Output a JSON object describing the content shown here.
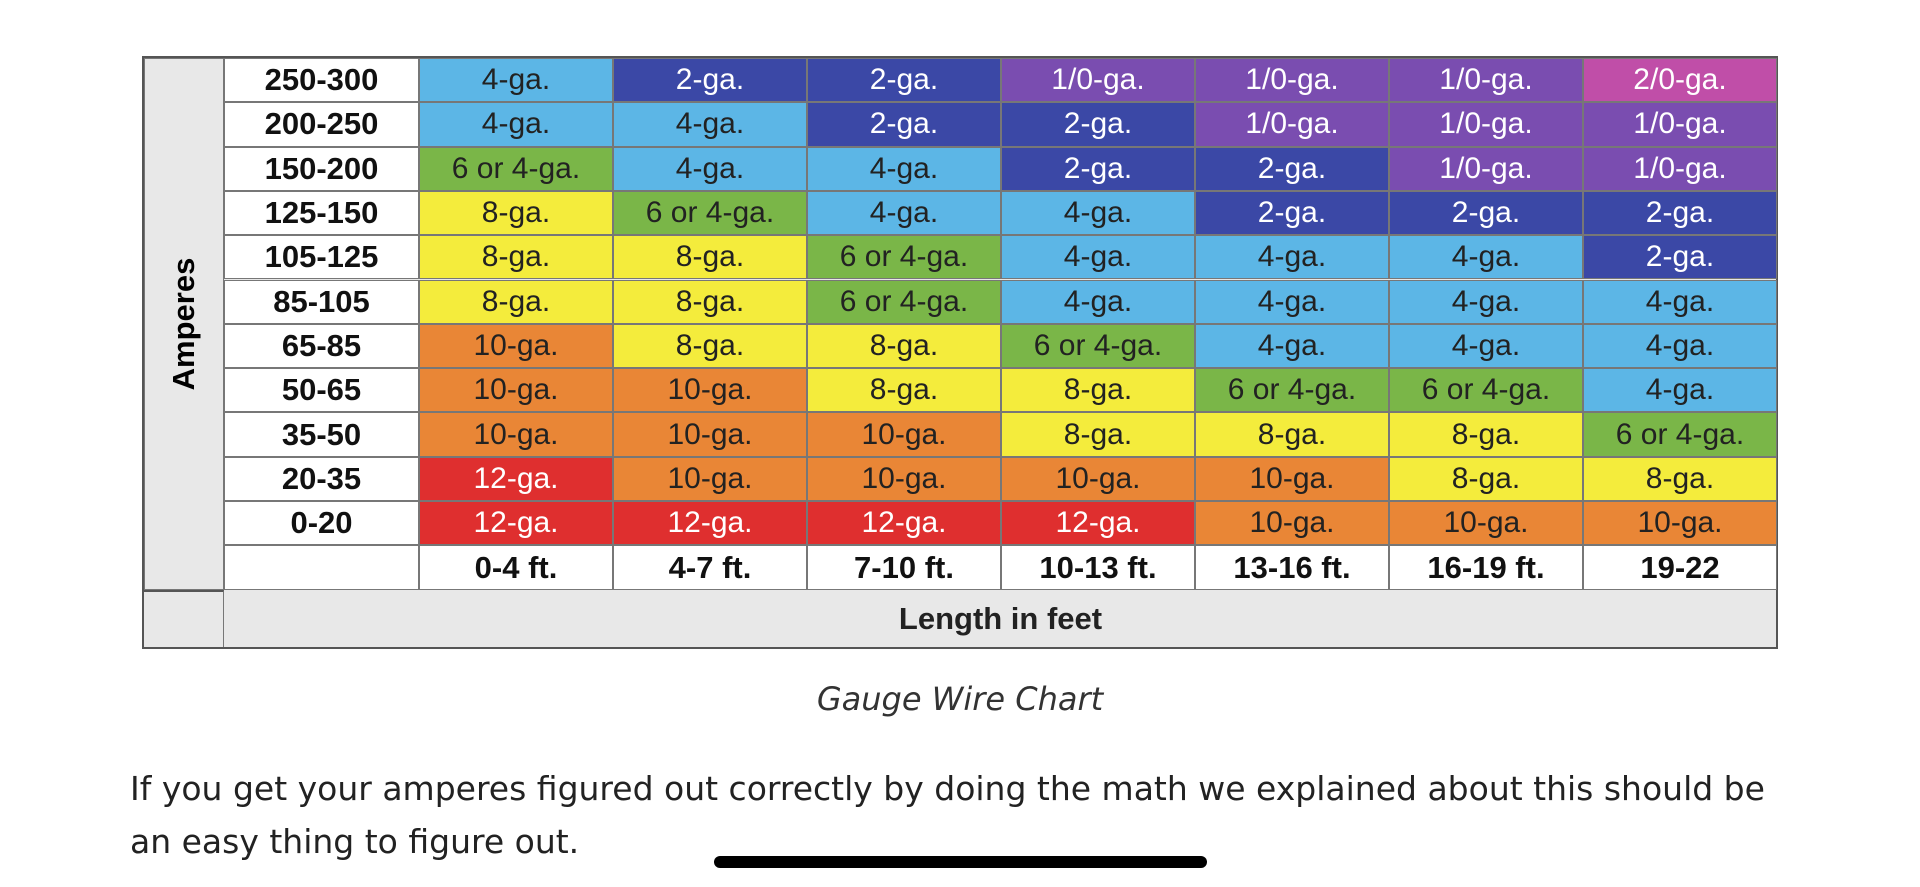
{
  "table": {
    "row_axis_label": "Amperes",
    "column_axis_label": "Length in feet",
    "columns": [
      "0-4 ft.",
      "4-7 ft.",
      "7-10 ft.",
      "10-13 ft.",
      "13-16 ft.",
      "16-19 ft.",
      "19-22"
    ],
    "rows": [
      {
        "label": "250-300",
        "cells": [
          {
            "text": "4-ga.",
            "color": "#5cb6e6"
          },
          {
            "text": "2-ga.",
            "color": "#3b48a6"
          },
          {
            "text": "2-ga.",
            "color": "#3b48a6"
          },
          {
            "text": "1/0-ga.",
            "color": "#7a4db0"
          },
          {
            "text": "1/0-ga.",
            "color": "#7a4db0"
          },
          {
            "text": "1/0-ga.",
            "color": "#7a4db0"
          },
          {
            "text": "2/0-ga.",
            "color": "#c04ea8"
          }
        ]
      },
      {
        "label": "200-250",
        "cells": [
          {
            "text": "4-ga.",
            "color": "#5cb6e6"
          },
          {
            "text": "4-ga.",
            "color": "#5cb6e6"
          },
          {
            "text": "2-ga.",
            "color": "#3b48a6"
          },
          {
            "text": "2-ga.",
            "color": "#3b48a6"
          },
          {
            "text": "1/0-ga.",
            "color": "#7a4db0"
          },
          {
            "text": "1/0-ga.",
            "color": "#7a4db0"
          },
          {
            "text": "1/0-ga.",
            "color": "#7a4db0"
          }
        ]
      },
      {
        "label": "150-200",
        "cells": [
          {
            "text": "6 or 4-ga.",
            "color": "#7ab648"
          },
          {
            "text": "4-ga.",
            "color": "#5cb6e6"
          },
          {
            "text": "4-ga.",
            "color": "#5cb6e6"
          },
          {
            "text": "2-ga.",
            "color": "#3b48a6"
          },
          {
            "text": "2-ga.",
            "color": "#3b48a6"
          },
          {
            "text": "1/0-ga.",
            "color": "#7a4db0"
          },
          {
            "text": "1/0-ga.",
            "color": "#7a4db0"
          }
        ]
      },
      {
        "label": "125-150",
        "cells": [
          {
            "text": "8-ga.",
            "color": "#f4ec3c"
          },
          {
            "text": "6 or 4-ga.",
            "color": "#7ab648"
          },
          {
            "text": "4-ga.",
            "color": "#5cb6e6"
          },
          {
            "text": "4-ga.",
            "color": "#5cb6e6"
          },
          {
            "text": "2-ga.",
            "color": "#3b48a6"
          },
          {
            "text": "2-ga.",
            "color": "#3b48a6"
          },
          {
            "text": "2-ga.",
            "color": "#3b48a6"
          }
        ]
      },
      {
        "label": "105-125",
        "cells": [
          {
            "text": "8-ga.",
            "color": "#f4ec3c"
          },
          {
            "text": "8-ga.",
            "color": "#f4ec3c"
          },
          {
            "text": "6 or 4-ga.",
            "color": "#7ab648"
          },
          {
            "text": "4-ga.",
            "color": "#5cb6e6"
          },
          {
            "text": "4-ga.",
            "color": "#5cb6e6"
          },
          {
            "text": "4-ga.",
            "color": "#5cb6e6"
          },
          {
            "text": "2-ga.",
            "color": "#3b48a6"
          }
        ]
      },
      {
        "label": "85-105",
        "cells": [
          {
            "text": "8-ga.",
            "color": "#f4ec3c"
          },
          {
            "text": "8-ga.",
            "color": "#f4ec3c"
          },
          {
            "text": "6 or 4-ga.",
            "color": "#7ab648"
          },
          {
            "text": "4-ga.",
            "color": "#5cb6e6"
          },
          {
            "text": "4-ga.",
            "color": "#5cb6e6"
          },
          {
            "text": "4-ga.",
            "color": "#5cb6e6"
          },
          {
            "text": "4-ga.",
            "color": "#5cb6e6"
          }
        ]
      },
      {
        "label": "65-85",
        "cells": [
          {
            "text": "10-ga.",
            "color": "#e98636"
          },
          {
            "text": "8-ga.",
            "color": "#f4ec3c"
          },
          {
            "text": "8-ga.",
            "color": "#f4ec3c"
          },
          {
            "text": "6 or 4-ga.",
            "color": "#7ab648"
          },
          {
            "text": "4-ga.",
            "color": "#5cb6e6"
          },
          {
            "text": "4-ga.",
            "color": "#5cb6e6"
          },
          {
            "text": "4-ga.",
            "color": "#5cb6e6"
          }
        ]
      },
      {
        "label": "50-65",
        "cells": [
          {
            "text": "10-ga.",
            "color": "#e98636"
          },
          {
            "text": "10-ga.",
            "color": "#e98636"
          },
          {
            "text": "8-ga.",
            "color": "#f4ec3c"
          },
          {
            "text": "8-ga.",
            "color": "#f4ec3c"
          },
          {
            "text": "6 or 4-ga.",
            "color": "#7ab648"
          },
          {
            "text": "6 or 4-ga.",
            "color": "#7ab648"
          },
          {
            "text": "4-ga.",
            "color": "#5cb6e6"
          }
        ]
      },
      {
        "label": "35-50",
        "cells": [
          {
            "text": "10-ga.",
            "color": "#e98636"
          },
          {
            "text": "10-ga.",
            "color": "#e98636"
          },
          {
            "text": "10-ga.",
            "color": "#e98636"
          },
          {
            "text": "8-ga.",
            "color": "#f4ec3c"
          },
          {
            "text": "8-ga.",
            "color": "#f4ec3c"
          },
          {
            "text": "8-ga.",
            "color": "#f4ec3c"
          },
          {
            "text": "6 or 4-ga.",
            "color": "#7ab648"
          }
        ]
      },
      {
        "label": "20-35",
        "cells": [
          {
            "text": "12-ga.",
            "color": "#df2f2f"
          },
          {
            "text": "10-ga.",
            "color": "#e98636"
          },
          {
            "text": "10-ga.",
            "color": "#e98636"
          },
          {
            "text": "10-ga.",
            "color": "#e98636"
          },
          {
            "text": "10-ga.",
            "color": "#e98636"
          },
          {
            "text": "8-ga.",
            "color": "#f4ec3c"
          },
          {
            "text": "8-ga.",
            "color": "#f4ec3c"
          }
        ]
      },
      {
        "label": "0-20",
        "cells": [
          {
            "text": "12-ga.",
            "color": "#df2f2f"
          },
          {
            "text": "12-ga.",
            "color": "#df2f2f"
          },
          {
            "text": "12-ga.",
            "color": "#df2f2f"
          },
          {
            "text": "12-ga.",
            "color": "#df2f2f"
          },
          {
            "text": "10-ga.",
            "color": "#e98636"
          },
          {
            "text": "10-ga.",
            "color": "#e98636"
          },
          {
            "text": "10-ga.",
            "color": "#e98636"
          }
        ]
      }
    ]
  },
  "caption": "Gauge Wire Chart",
  "paragraph": "If you get your amperes figured out correctly by doing the math we explained about this should be an easy thing to figure out."
}
